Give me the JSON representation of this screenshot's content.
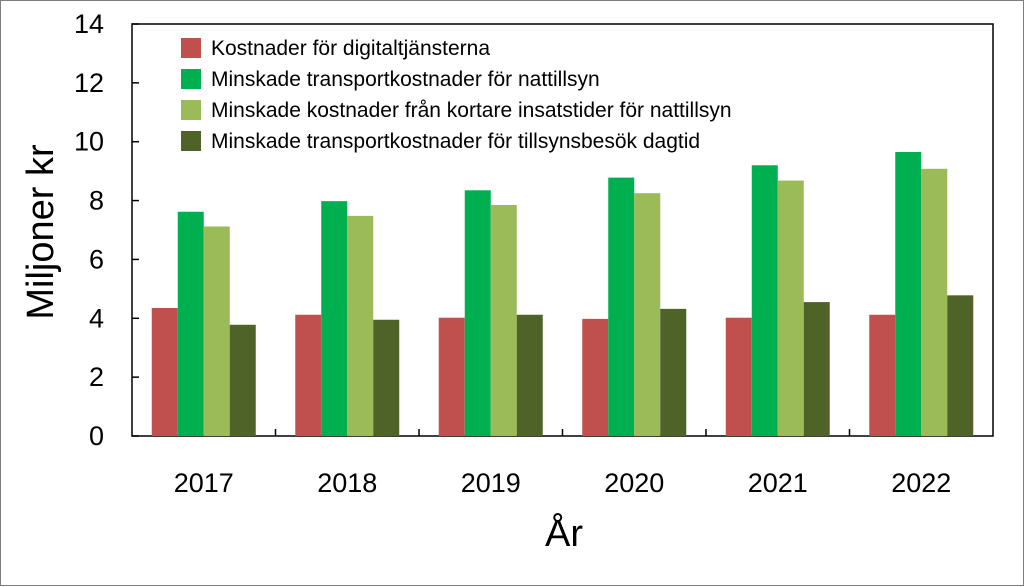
{
  "chart_data": {
    "type": "bar",
    "title": "",
    "xlabel": "År",
    "ylabel": "Miljoner kr",
    "ylim": [
      0,
      14
    ],
    "yticks": [
      0,
      2,
      4,
      6,
      8,
      10,
      12,
      14
    ],
    "grid": false,
    "legend_position": "top-left",
    "categories": [
      "2017",
      "2018",
      "2019",
      "2020",
      "2021",
      "2022"
    ],
    "series": [
      {
        "name": "Kostnader för digitaltjänsterna",
        "color": "#c0504d",
        "values": [
          4.35,
          4.12,
          4.02,
          3.98,
          4.02,
          4.12
        ]
      },
      {
        "name": "Minskade transportkostnader för nattillsyn",
        "color": "#00b050",
        "values": [
          7.62,
          7.98,
          8.35,
          8.78,
          9.2,
          9.65
        ]
      },
      {
        "name": "Minskade kostnader från kortare insatstider för nattillsyn",
        "color": "#9bbb59",
        "values": [
          7.12,
          7.48,
          7.85,
          8.25,
          8.68,
          9.08
        ]
      },
      {
        "name": "Minskade transportkostnader för tillsynsbesök dagtid",
        "color": "#4f6228",
        "values": [
          3.78,
          3.95,
          4.12,
          4.32,
          4.55,
          4.78
        ]
      }
    ]
  }
}
